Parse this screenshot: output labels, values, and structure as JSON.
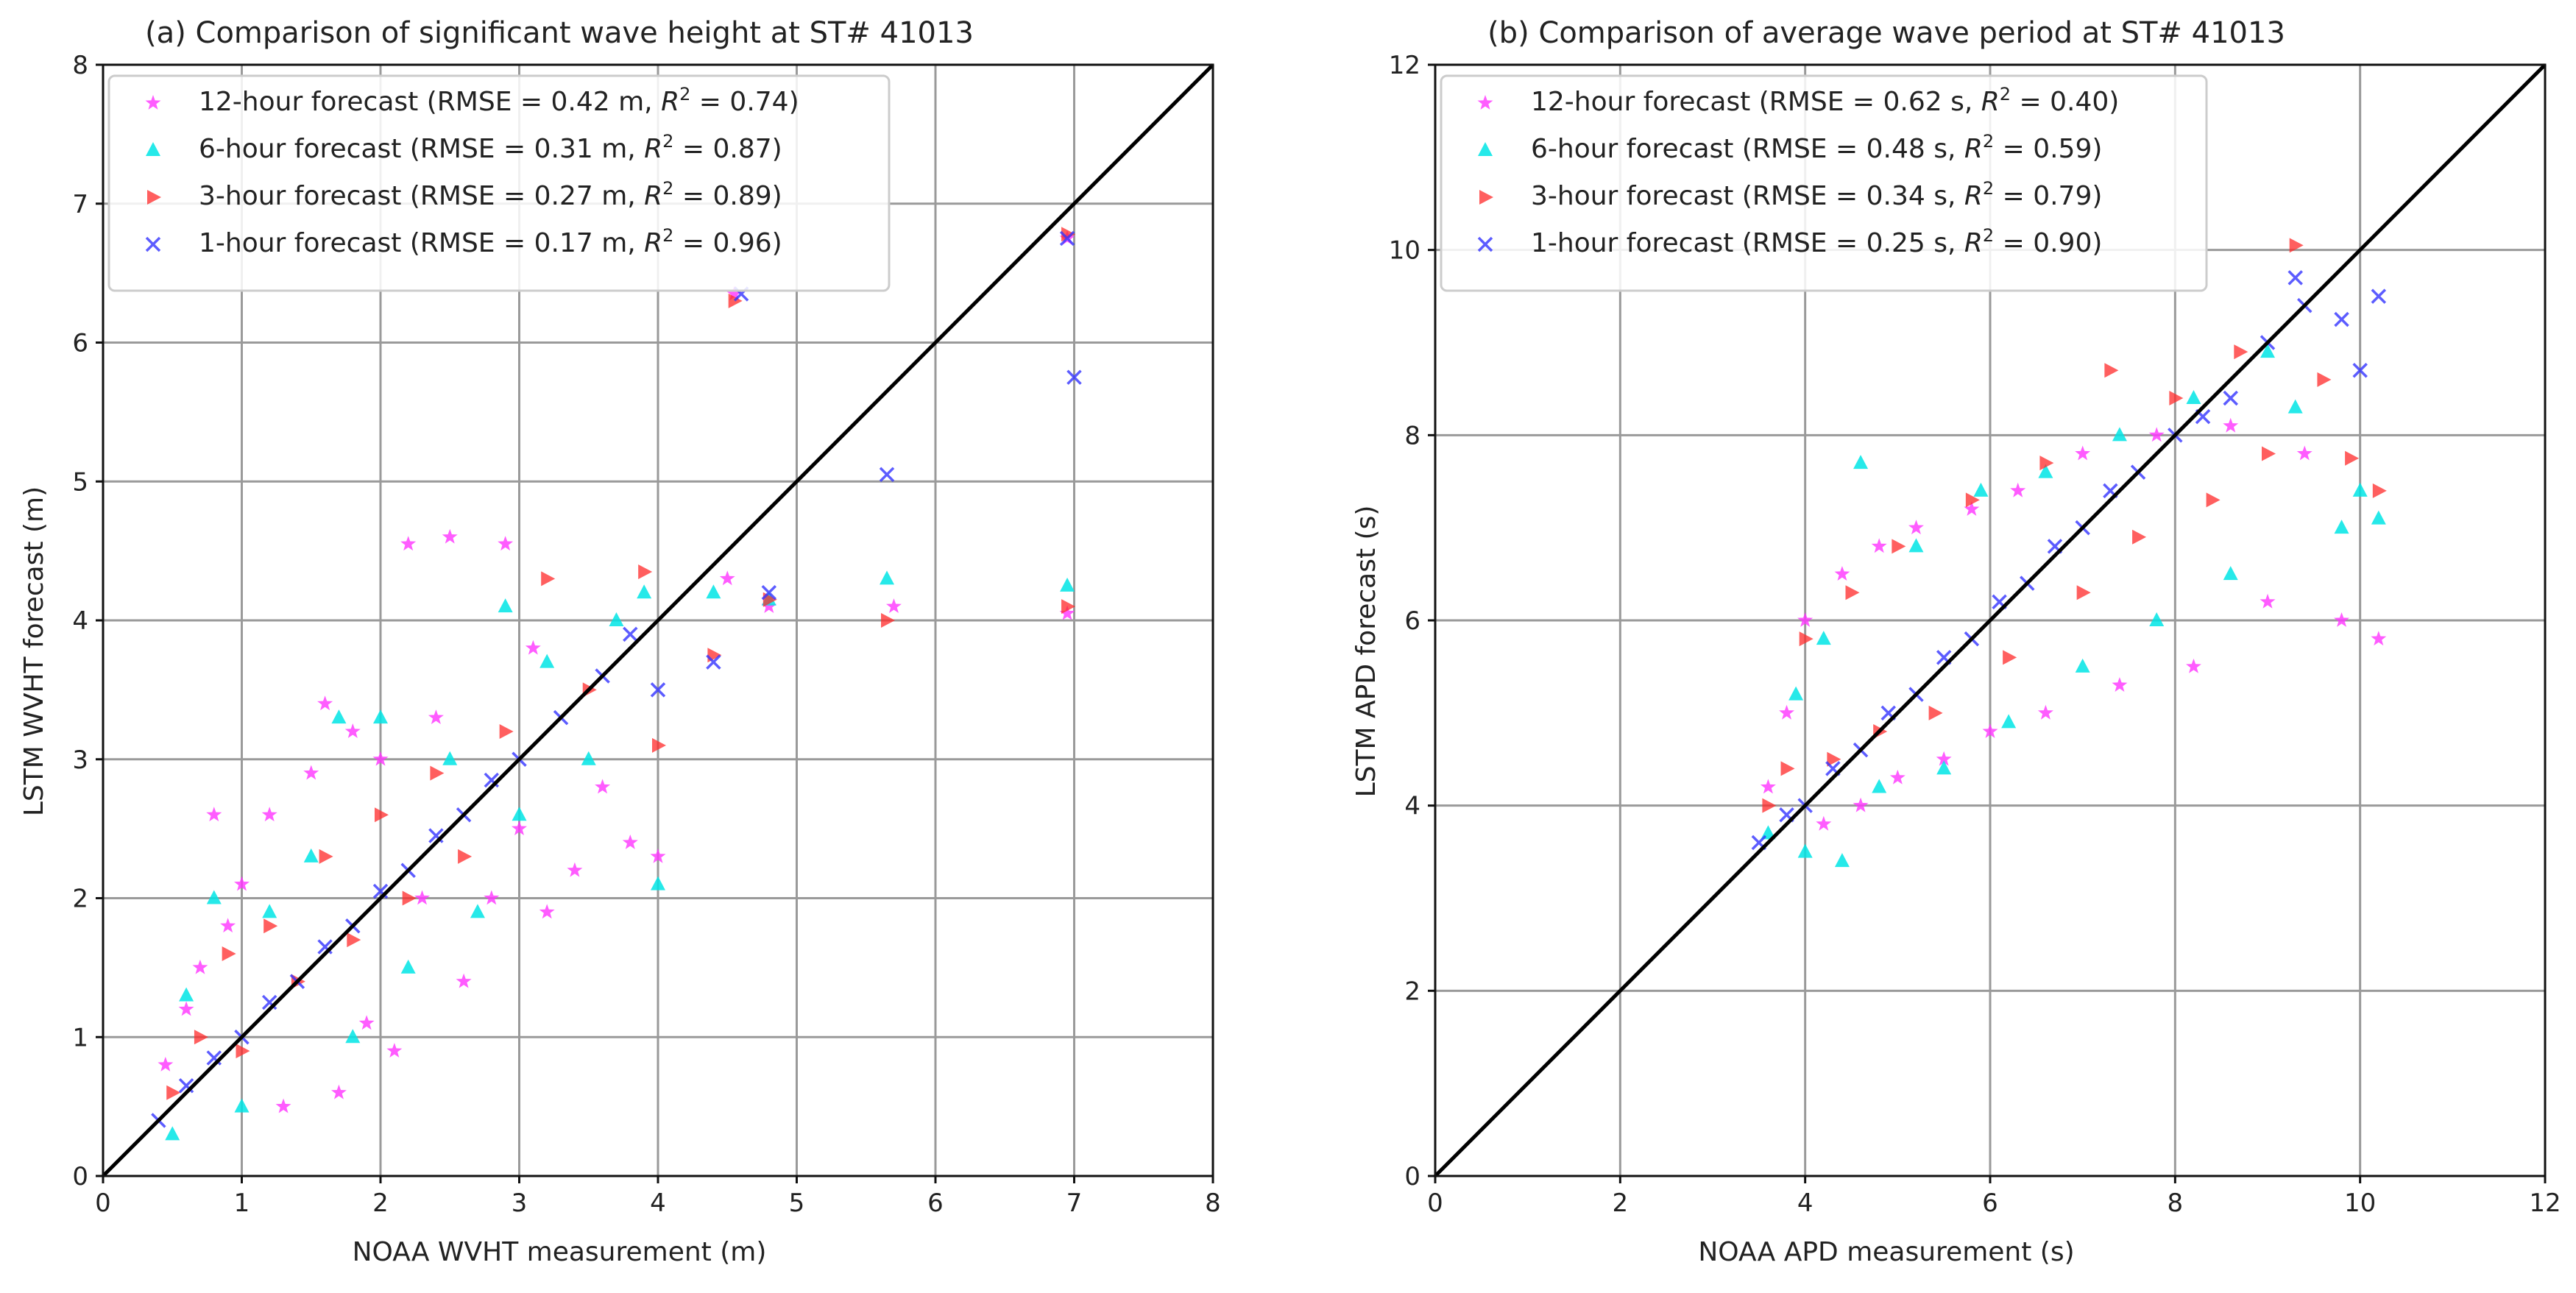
{
  "chart_data": [
    {
      "type": "scatter",
      "title": "(a) Comparison of significant wave height at ST# 41013",
      "xlabel": "NOAA WVHT measurement (m)",
      "ylabel": "LSTM WVHT forecast (m)",
      "xlim": [
        0,
        8
      ],
      "ylim": [
        0,
        8
      ],
      "xticks": [
        "0",
        "1",
        "2",
        "3",
        "4",
        "5",
        "6",
        "7",
        "8"
      ],
      "yticks": [
        "0",
        "1",
        "2",
        "3",
        "4",
        "5",
        "6",
        "7",
        "8"
      ],
      "grid": true,
      "legend_position": "top-left",
      "reference_line": {
        "name": "1:1 line",
        "x": [
          0,
          8
        ],
        "y": [
          0,
          8
        ]
      },
      "series": [
        {
          "name": "12-hour forecast",
          "label_pre": "12-hour forecast (RMSE = 0.42 m, ",
          "label_post": " = 0.74)",
          "marker": "star",
          "color": "#ff33ff",
          "points": [
            [
              0.45,
              0.8
            ],
            [
              0.6,
              1.2
            ],
            [
              0.7,
              1.5
            ],
            [
              0.8,
              2.6
            ],
            [
              0.9,
              1.8
            ],
            [
              1.0,
              2.1
            ],
            [
              1.2,
              2.6
            ],
            [
              1.3,
              0.5
            ],
            [
              1.5,
              2.9
            ],
            [
              1.6,
              3.4
            ],
            [
              1.7,
              0.6
            ],
            [
              1.8,
              3.2
            ],
            [
              1.9,
              1.1
            ],
            [
              2.0,
              3.0
            ],
            [
              2.1,
              0.9
            ],
            [
              2.2,
              4.55
            ],
            [
              2.3,
              2.0
            ],
            [
              2.4,
              3.3
            ],
            [
              2.5,
              4.6
            ],
            [
              2.6,
              1.4
            ],
            [
              2.8,
              2.0
            ],
            [
              2.9,
              4.55
            ],
            [
              3.0,
              2.5
            ],
            [
              3.1,
              3.8
            ],
            [
              3.2,
              1.9
            ],
            [
              3.4,
              2.2
            ],
            [
              3.6,
              2.8
            ],
            [
              3.8,
              2.4
            ],
            [
              4.0,
              2.3
            ],
            [
              4.5,
              4.3
            ],
            [
              4.55,
              6.35
            ],
            [
              4.8,
              4.1
            ],
            [
              5.7,
              4.1
            ],
            [
              6.95,
              4.05
            ],
            [
              6.95,
              6.75
            ]
          ]
        },
        {
          "name": "6-hour forecast",
          "label_pre": "6-hour forecast (RMSE = 0.31 m, ",
          "label_post": " = 0.87)",
          "marker": "triangle-up",
          "color": "#00e5e5",
          "points": [
            [
              0.5,
              0.3
            ],
            [
              0.6,
              1.3
            ],
            [
              0.8,
              2.0
            ],
            [
              1.0,
              0.5
            ],
            [
              1.2,
              1.9
            ],
            [
              1.5,
              2.3
            ],
            [
              1.7,
              3.3
            ],
            [
              1.8,
              1.0
            ],
            [
              2.0,
              3.3
            ],
            [
              2.2,
              1.5
            ],
            [
              2.5,
              3.0
            ],
            [
              2.7,
              1.9
            ],
            [
              2.9,
              4.1
            ],
            [
              3.0,
              2.6
            ],
            [
              3.2,
              3.7
            ],
            [
              3.5,
              3.0
            ],
            [
              3.7,
              4.0
            ],
            [
              3.9,
              4.2
            ],
            [
              4.0,
              2.1
            ],
            [
              4.4,
              4.2
            ],
            [
              4.8,
              4.15
            ],
            [
              5.65,
              4.3
            ],
            [
              6.95,
              4.25
            ]
          ]
        },
        {
          "name": "3-hour forecast",
          "label_pre": "3-hour forecast (RMSE = 0.27 m, ",
          "label_post": " = 0.89)",
          "marker": "triangle-right",
          "color": "#ff2a2a",
          "points": [
            [
              0.5,
              0.6
            ],
            [
              0.7,
              1.0
            ],
            [
              0.9,
              1.6
            ],
            [
              1.0,
              0.9
            ],
            [
              1.2,
              1.8
            ],
            [
              1.4,
              1.4
            ],
            [
              1.6,
              2.3
            ],
            [
              1.8,
              1.7
            ],
            [
              2.0,
              2.6
            ],
            [
              2.2,
              2.0
            ],
            [
              2.4,
              2.9
            ],
            [
              2.6,
              2.3
            ],
            [
              2.9,
              3.2
            ],
            [
              3.2,
              4.3
            ],
            [
              3.5,
              3.5
            ],
            [
              3.9,
              4.35
            ],
            [
              4.0,
              3.1
            ],
            [
              4.4,
              3.75
            ],
            [
              4.55,
              6.3
            ],
            [
              4.8,
              4.15
            ],
            [
              5.65,
              4.0
            ],
            [
              6.95,
              4.1
            ],
            [
              6.95,
              6.78
            ]
          ]
        },
        {
          "name": "1-hour forecast",
          "label_pre": "1-hour forecast (RMSE = 0.17 m, ",
          "label_post": " = 0.96)",
          "marker": "x",
          "color": "#3333ff",
          "points": [
            [
              0.4,
              0.4
            ],
            [
              0.6,
              0.65
            ],
            [
              0.8,
              0.85
            ],
            [
              1.0,
              1.0
            ],
            [
              1.2,
              1.25
            ],
            [
              1.4,
              1.4
            ],
            [
              1.6,
              1.65
            ],
            [
              1.8,
              1.8
            ],
            [
              2.0,
              2.05
            ],
            [
              2.2,
              2.2
            ],
            [
              2.4,
              2.45
            ],
            [
              2.6,
              2.6
            ],
            [
              2.8,
              2.85
            ],
            [
              3.0,
              3.0
            ],
            [
              3.3,
              3.3
            ],
            [
              3.6,
              3.6
            ],
            [
              3.8,
              3.9
            ],
            [
              4.0,
              3.5
            ],
            [
              4.4,
              3.7
            ],
            [
              4.6,
              6.35
            ],
            [
              4.8,
              4.2
            ],
            [
              5.65,
              5.05
            ],
            [
              6.95,
              6.75
            ],
            [
              7.0,
              5.75
            ]
          ]
        }
      ],
      "legend": [
        {
          "pre": "12-hour forecast (RMSE = 0.42 m, ",
          "post": " = 0.74)"
        },
        {
          "pre": "6-hour forecast (RMSE = 0.31 m, ",
          "post": " = 0.87)"
        },
        {
          "pre": "3-hour forecast (RMSE = 0.27 m, ",
          "post": " = 0.89)"
        },
        {
          "pre": "1-hour forecast (RMSE = 0.17 m, ",
          "post": " = 0.96)"
        }
      ]
    },
    {
      "type": "scatter",
      "title": "(b) Comparison of average wave period at ST# 41013",
      "xlabel": "NOAA APD measurement (s)",
      "ylabel": "LSTM APD forecast (s)",
      "xlim": [
        0,
        12
      ],
      "ylim": [
        0,
        12
      ],
      "xticks": [
        "0",
        "2",
        "4",
        "6",
        "8",
        "10",
        "12"
      ],
      "yticks": [
        "0",
        "2",
        "4",
        "6",
        "8",
        "10",
        "12"
      ],
      "grid": true,
      "legend_position": "top-left",
      "reference_line": {
        "name": "1:1 line",
        "x": [
          0,
          12
        ],
        "y": [
          0,
          12
        ]
      },
      "series": [
        {
          "name": "12-hour forecast",
          "marker": "star",
          "color": "#ff33ff",
          "points": [
            [
              3.6,
              4.2
            ],
            [
              3.8,
              5.0
            ],
            [
              4.0,
              6.0
            ],
            [
              4.2,
              3.8
            ],
            [
              4.4,
              6.5
            ],
            [
              4.6,
              4.0
            ],
            [
              4.8,
              6.8
            ],
            [
              5.0,
              4.3
            ],
            [
              5.2,
              7.0
            ],
            [
              5.5,
              4.5
            ],
            [
              5.8,
              7.2
            ],
            [
              6.0,
              4.8
            ],
            [
              6.3,
              7.4
            ],
            [
              6.6,
              5.0
            ],
            [
              7.0,
              7.8
            ],
            [
              7.4,
              5.3
            ],
            [
              7.8,
              8.0
            ],
            [
              8.2,
              5.5
            ],
            [
              8.6,
              8.1
            ],
            [
              9.0,
              6.2
            ],
            [
              9.4,
              7.8
            ],
            [
              9.8,
              6.0
            ],
            [
              10.2,
              5.8
            ]
          ]
        },
        {
          "name": "6-hour forecast",
          "marker": "triangle-up",
          "color": "#00e5e5",
          "points": [
            [
              3.6,
              3.7
            ],
            [
              3.9,
              5.2
            ],
            [
              4.0,
              3.5
            ],
            [
              4.2,
              5.8
            ],
            [
              4.4,
              3.4
            ],
            [
              4.6,
              7.7
            ],
            [
              4.8,
              4.2
            ],
            [
              5.2,
              6.8
            ],
            [
              5.5,
              4.4
            ],
            [
              5.9,
              7.4
            ],
            [
              6.2,
              4.9
            ],
            [
              6.6,
              7.6
            ],
            [
              7.0,
              5.5
            ],
            [
              7.4,
              8.0
            ],
            [
              7.8,
              6.0
            ],
            [
              8.2,
              8.4
            ],
            [
              8.6,
              6.5
            ],
            [
              9.0,
              8.9
            ],
            [
              9.3,
              8.3
            ],
            [
              9.8,
              7.0
            ],
            [
              10.0,
              7.4
            ],
            [
              10.2,
              7.1
            ]
          ]
        },
        {
          "name": "3-hour forecast",
          "marker": "triangle-right",
          "color": "#ff2a2a",
          "points": [
            [
              3.6,
              4.0
            ],
            [
              3.8,
              4.4
            ],
            [
              4.0,
              5.8
            ],
            [
              4.3,
              4.5
            ],
            [
              4.5,
              6.3
            ],
            [
              4.8,
              4.8
            ],
            [
              5.0,
              6.8
            ],
            [
              5.4,
              5.0
            ],
            [
              5.8,
              7.3
            ],
            [
              6.2,
              5.6
            ],
            [
              6.6,
              7.7
            ],
            [
              7.0,
              6.3
            ],
            [
              7.3,
              8.7
            ],
            [
              7.6,
              6.9
            ],
            [
              8.0,
              8.4
            ],
            [
              8.4,
              7.3
            ],
            [
              8.7,
              8.9
            ],
            [
              9.0,
              7.8
            ],
            [
              9.3,
              10.05
            ],
            [
              9.6,
              8.6
            ],
            [
              9.9,
              7.75
            ],
            [
              10.2,
              7.4
            ]
          ]
        },
        {
          "name": "1-hour forecast",
          "marker": "x",
          "color": "#3333ff",
          "points": [
            [
              3.5,
              3.6
            ],
            [
              3.8,
              3.9
            ],
            [
              4.0,
              4.0
            ],
            [
              4.3,
              4.4
            ],
            [
              4.6,
              4.6
            ],
            [
              4.9,
              5.0
            ],
            [
              5.2,
              5.2
            ],
            [
              5.5,
              5.6
            ],
            [
              5.8,
              5.8
            ],
            [
              6.1,
              6.2
            ],
            [
              6.4,
              6.4
            ],
            [
              6.7,
              6.8
            ],
            [
              7.0,
              7.0
            ],
            [
              7.3,
              7.4
            ],
            [
              7.6,
              7.6
            ],
            [
              8.0,
              8.0
            ],
            [
              8.3,
              8.2
            ],
            [
              8.6,
              8.4
            ],
            [
              9.0,
              9.0
            ],
            [
              9.3,
              9.7
            ],
            [
              9.4,
              9.4
            ],
            [
              9.8,
              9.25
            ],
            [
              10.0,
              8.7
            ],
            [
              10.2,
              9.5
            ]
          ]
        }
      ],
      "legend": [
        {
          "pre": "12-hour forecast (RMSE = 0.62 s, ",
          "post": " = 0.40)"
        },
        {
          "pre": "6-hour forecast (RMSE = 0.48 s, ",
          "post": " = 0.59)"
        },
        {
          "pre": "3-hour forecast (RMSE = 0.34 s, ",
          "post": " = 0.79)"
        },
        {
          "pre": "1-hour forecast (RMSE = 0.25 s, ",
          "post": " = 0.90)"
        }
      ]
    }
  ],
  "r2_symbol": "R",
  "r2_power": "2"
}
